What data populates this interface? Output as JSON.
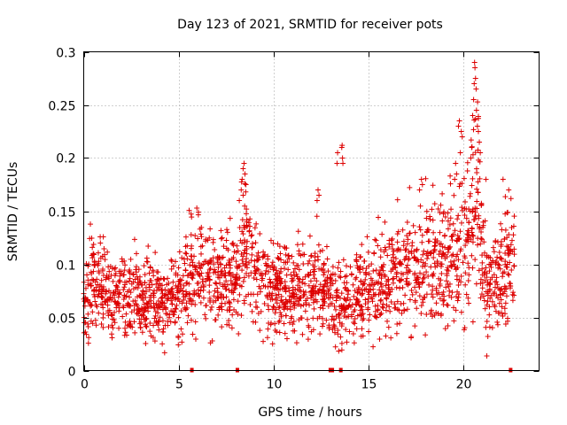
{
  "chart_data": {
    "type": "scatter",
    "title": "Day 123 of 2021, SRMTID for receiver pots",
    "xlabel": "GPS time / hours",
    "ylabel": "SRMTID / TECUs",
    "xlim": [
      0,
      24
    ],
    "ylim": [
      0,
      0.3
    ],
    "grid": true,
    "x_ticks": [
      0,
      5,
      10,
      15,
      20
    ],
    "x_tick_labels": [
      "0",
      "5",
      "10",
      "15",
      "20"
    ],
    "y_ticks": [
      0,
      0.05,
      0.1,
      0.15,
      0.2,
      0.25,
      0.3
    ],
    "y_tick_labels": [
      "0",
      "0.05",
      "0.1",
      "0.15",
      "0.2",
      "0.25",
      "0.3"
    ],
    "marker": "+",
    "series_color": "#dd0000",
    "baseline": [
      [
        0.0,
        0.07
      ],
      [
        0.5,
        0.085
      ],
      [
        1.0,
        0.075
      ],
      [
        1.5,
        0.07
      ],
      [
        2.0,
        0.07
      ],
      [
        2.5,
        0.072
      ],
      [
        3.0,
        0.07
      ],
      [
        3.5,
        0.068
      ],
      [
        4.0,
        0.062
      ],
      [
        4.5,
        0.063
      ],
      [
        5.0,
        0.075
      ],
      [
        5.5,
        0.085
      ],
      [
        6.0,
        0.095
      ],
      [
        6.5,
        0.09
      ],
      [
        7.0,
        0.085
      ],
      [
        7.5,
        0.09
      ],
      [
        8.0,
        0.085
      ],
      [
        8.3,
        0.1
      ],
      [
        8.6,
        0.12
      ],
      [
        9.0,
        0.09
      ],
      [
        9.5,
        0.085
      ],
      [
        10.0,
        0.075
      ],
      [
        10.5,
        0.08
      ],
      [
        11.0,
        0.07
      ],
      [
        11.5,
        0.075
      ],
      [
        12.0,
        0.085
      ],
      [
        12.5,
        0.08
      ],
      [
        13.0,
        0.07
      ],
      [
        13.5,
        0.065
      ],
      [
        14.0,
        0.07
      ],
      [
        14.5,
        0.075
      ],
      [
        15.0,
        0.075
      ],
      [
        15.5,
        0.08
      ],
      [
        16.0,
        0.085
      ],
      [
        16.5,
        0.09
      ],
      [
        17.0,
        0.095
      ],
      [
        17.5,
        0.095
      ],
      [
        18.0,
        0.1
      ],
      [
        18.5,
        0.1
      ],
      [
        19.0,
        0.105
      ],
      [
        19.5,
        0.11
      ],
      [
        20.0,
        0.12
      ],
      [
        20.5,
        0.15
      ],
      [
        20.8,
        0.16
      ],
      [
        21.0,
        0.1
      ],
      [
        21.5,
        0.08
      ],
      [
        22.0,
        0.095
      ],
      [
        22.5,
        0.105
      ],
      [
        22.7,
        0.1
      ]
    ],
    "spikes": [
      [
        8.2,
        0.16
      ],
      [
        8.3,
        0.17
      ],
      [
        8.35,
        0.18
      ],
      [
        8.4,
        0.19
      ],
      [
        8.45,
        0.195
      ],
      [
        8.5,
        0.185
      ],
      [
        8.55,
        0.175
      ],
      [
        8.4,
        0.165
      ],
      [
        12.3,
        0.16
      ],
      [
        12.35,
        0.17
      ],
      [
        12.4,
        0.165
      ],
      [
        13.35,
        0.195
      ],
      [
        13.38,
        0.205
      ],
      [
        13.6,
        0.21
      ],
      [
        13.62,
        0.212
      ],
      [
        13.64,
        0.2
      ],
      [
        13.66,
        0.195
      ],
      [
        17.7,
        0.17
      ],
      [
        17.8,
        0.18
      ],
      [
        17.85,
        0.175
      ],
      [
        19.55,
        0.18
      ],
      [
        19.6,
        0.195
      ],
      [
        19.65,
        0.185
      ],
      [
        19.75,
        0.23
      ],
      [
        19.8,
        0.235
      ],
      [
        19.9,
        0.225
      ],
      [
        19.95,
        0.22
      ],
      [
        19.85,
        0.205
      ],
      [
        20.4,
        0.2
      ],
      [
        20.45,
        0.21
      ],
      [
        20.5,
        0.24
      ],
      [
        20.55,
        0.255
      ],
      [
        20.58,
        0.27
      ],
      [
        20.6,
        0.29
      ],
      [
        20.62,
        0.285
      ],
      [
        20.65,
        0.275
      ],
      [
        20.68,
        0.265
      ],
      [
        20.7,
        0.245
      ],
      [
        20.75,
        0.23
      ],
      [
        20.8,
        0.225
      ],
      [
        20.85,
        0.215
      ],
      [
        20.9,
        0.205
      ],
      [
        21.2,
        0.18
      ],
      [
        22.1,
        0.18
      ],
      [
        22.4,
        0.17
      ]
    ],
    "zero_markers": [
      5.7,
      8.1,
      13.0,
      13.1,
      13.55,
      22.5
    ],
    "point_count": 2200
  }
}
